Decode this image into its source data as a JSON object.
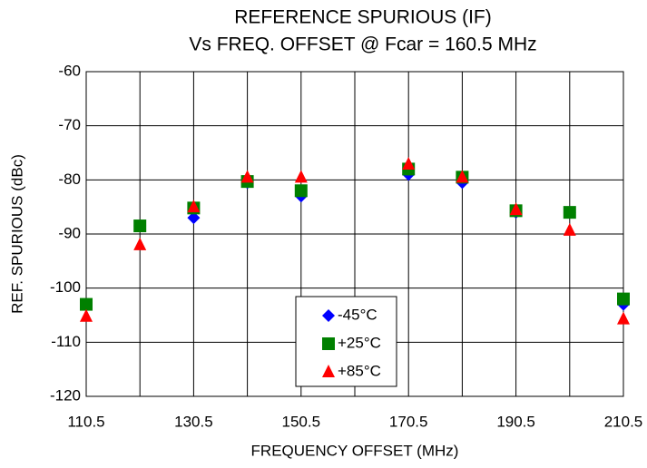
{
  "chart_data": {
    "type": "scatter",
    "title": [
      "REFERENCE SPURIOUS (IF)",
      "Vs FREQ. OFFSET @ Fcar = 160.5 MHz"
    ],
    "xlabel": "FREQUENCY OFFSET (MHz)",
    "ylabel": "REF. SPURIOUS (dBc)",
    "xlim": [
      110.5,
      210.5
    ],
    "xticks": [
      110.5,
      130.5,
      150.5,
      170.5,
      190.5,
      210.5
    ],
    "xminorticks": [
      120.5,
      140.5,
      160.5,
      180.5,
      200.5
    ],
    "ylim": [
      -120,
      -60
    ],
    "yticks": [
      -120,
      -110,
      -100,
      -90,
      -80,
      -70,
      -60
    ],
    "grid": true,
    "legend": "lower center",
    "x": [
      110.5,
      120.5,
      130.5,
      140.5,
      150.5,
      170.5,
      180.5,
      190.5,
      200.5,
      210.5
    ],
    "series": [
      {
        "name": "-45°C",
        "color": "#0000ff",
        "marker": "diamond",
        "values": [
          -103,
          -88.5,
          -87,
          -80.5,
          -83,
          -79,
          -80.5,
          -86,
          -86,
          -103
        ]
      },
      {
        "name": "+25°C",
        "color": "#008000",
        "marker": "square",
        "values": [
          -103,
          -88.5,
          -85.2,
          -80.3,
          -82,
          -78,
          -79.5,
          -85.7,
          -86,
          -102
        ]
      },
      {
        "name": "+85°C",
        "color": "#ff0000",
        "marker": "triangle",
        "values": [
          -105.2,
          -92,
          -85,
          -79.5,
          -79.5,
          -77.1,
          -79.5,
          -85.5,
          -89.3,
          -105.7
        ]
      }
    ]
  }
}
